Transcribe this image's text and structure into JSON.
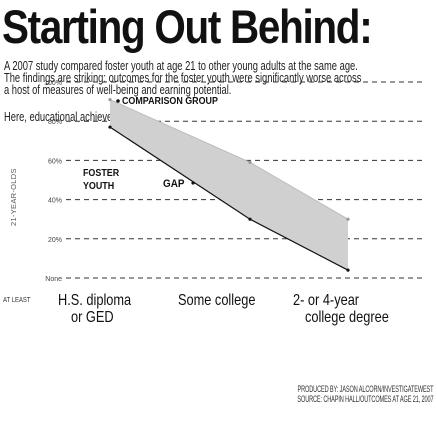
{
  "title": "Starting Out Behind:",
  "intro": "A 2007 study compared foster youth at age 21 to other young adults at the same age. The findings are striking: outcomes for the foster youth were significantly worse across a host of measures of well-being and earning potential.",
  "lead": "Here, educational achievement:",
  "credits": {
    "produced_by": "PRODUCED BY: JASON ALCORN/INVESTIGATEWEST",
    "source": "SOURCE: CHAPIN HALL/OUTCOMES AT AGE 21, 2007"
  },
  "chart_data": {
    "type": "area",
    "ylabel": "21-YEAR-OLDS",
    "ylim": [
      0,
      100
    ],
    "y_ticks": [
      {
        "value": 100,
        "label": "100%"
      },
      {
        "value": 80,
        "label": "80%"
      },
      {
        "value": 60,
        "label": "60%"
      },
      {
        "value": 40,
        "label": "40%"
      },
      {
        "value": 20,
        "label": "20%"
      },
      {
        "value": 0,
        "label": "None"
      }
    ],
    "categories": [
      {
        "prefix": "AT LEAST",
        "lines": [
          "H.S. diploma",
          "or GED"
        ]
      },
      {
        "prefix": "",
        "lines": [
          "Some college"
        ]
      },
      {
        "prefix": "",
        "lines": [
          "2- or 4-year",
          "college degree"
        ]
      }
    ],
    "series": [
      {
        "name": "COMPARISON GROUP",
        "values": [
          91,
          59,
          30
        ]
      },
      {
        "name": "FOSTER YOUTH",
        "values": [
          77,
          30,
          4
        ]
      }
    ],
    "annotations": [
      {
        "text": "GAP"
      }
    ],
    "colors": {
      "gap_fill": "#d0d0d0",
      "line_dark": "#111111",
      "grid": "#333333",
      "text": "#111111"
    }
  }
}
